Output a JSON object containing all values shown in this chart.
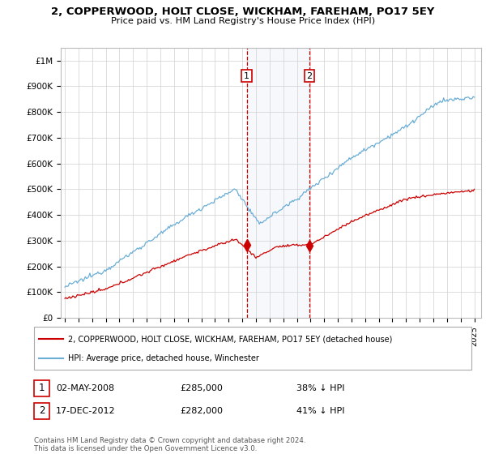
{
  "title": "2, COPPERWOOD, HOLT CLOSE, WICKHAM, FAREHAM, PO17 5EY",
  "subtitle": "Price paid vs. HM Land Registry's House Price Index (HPI)",
  "ylabel_ticks": [
    "£0",
    "£100K",
    "£200K",
    "£300K",
    "£400K",
    "£500K",
    "£600K",
    "£700K",
    "£800K",
    "£900K",
    "£1M"
  ],
  "ytick_values": [
    0,
    100000,
    200000,
    300000,
    400000,
    500000,
    600000,
    700000,
    800000,
    900000,
    1000000
  ],
  "ylim": [
    0,
    1050000
  ],
  "xlim_left": 1994.7,
  "xlim_right": 2025.5,
  "hpi_color": "#6baed6",
  "price_color": "#cc0000",
  "vline_color": "#cc0000",
  "shade_color": "#dce6f1",
  "grid_color": "#d0d0d0",
  "transaction1_x": 2008.33,
  "transaction1_y": 285000,
  "transaction2_x": 2012.92,
  "transaction2_y": 282000,
  "legend_label_price": "2, COPPERWOOD, HOLT CLOSE, WICKHAM, FAREHAM, PO17 5EY (detached house)",
  "legend_label_hpi": "HPI: Average price, detached house, Winchester",
  "footer": "Contains HM Land Registry data © Crown copyright and database right 2024.\nThis data is licensed under the Open Government Licence v3.0.",
  "row1_date": "02-MAY-2008",
  "row1_price": "£285,000",
  "row1_label": "38% ↓ HPI",
  "row2_date": "17-DEC-2012",
  "row2_price": "£282,000",
  "row2_label": "41% ↓ HPI"
}
